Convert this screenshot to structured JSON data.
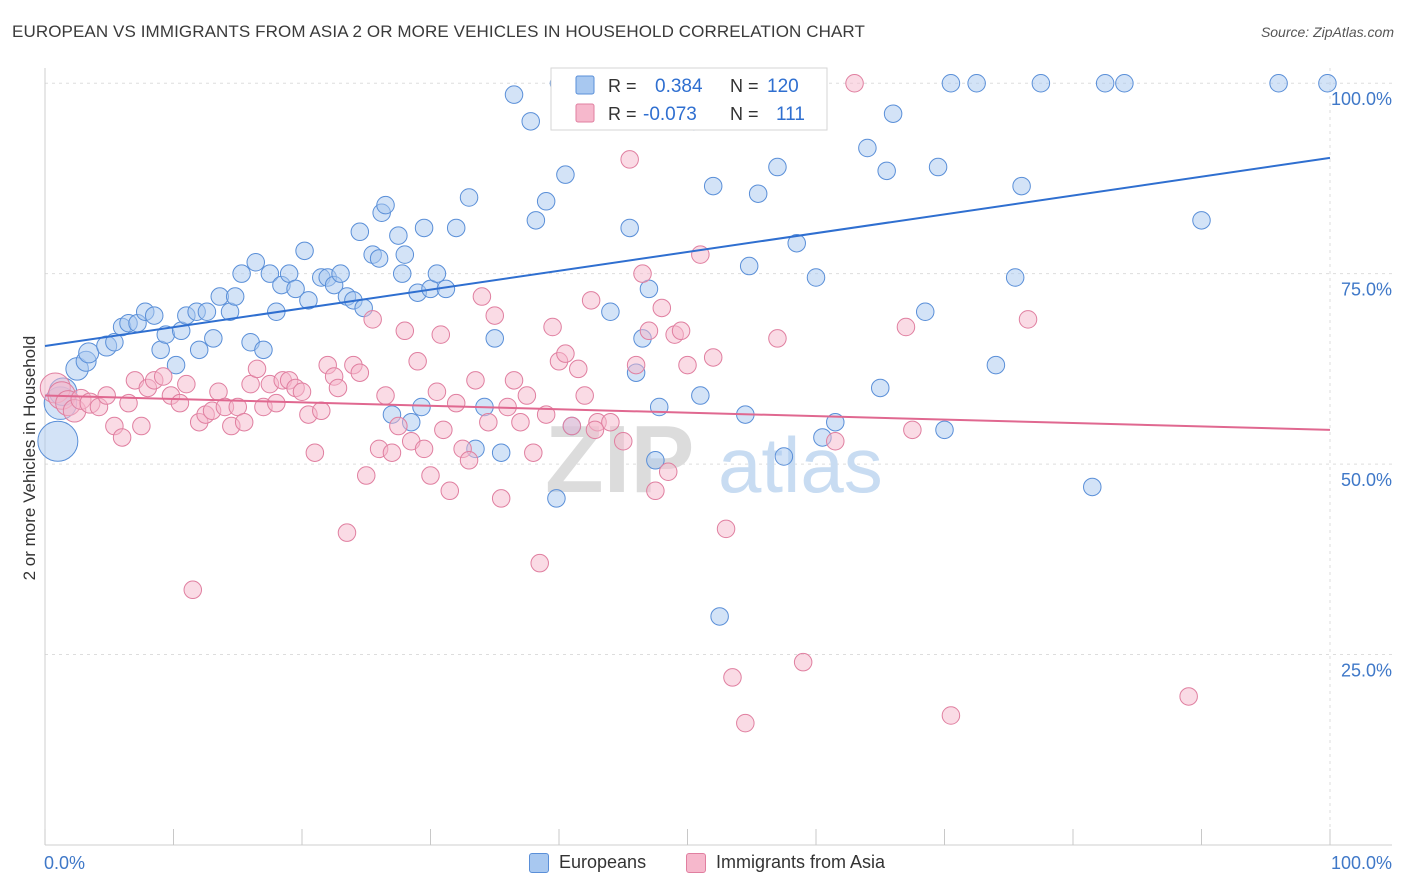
{
  "title": "EUROPEAN VS IMMIGRANTS FROM ASIA 2 OR MORE VEHICLES IN HOUSEHOLD CORRELATION CHART",
  "source": "Source: ZipAtlas.com",
  "watermark": {
    "zip": "ZIP",
    "atlas": "atlas"
  },
  "legend_stats": [
    {
      "r_label": "R =",
      "r_value": "0.384",
      "n_label": "N =",
      "n_value": "120"
    },
    {
      "r_label": "R =",
      "r_value": "-0.073",
      "n_label": "N =",
      "n_value": "111"
    }
  ],
  "colors": {
    "europeans_fill": "#a8c8f0",
    "europeans_stroke": "#5a8fd8",
    "europeans_line": "#2f6fd0",
    "asia_fill": "#f6b8cc",
    "asia_stroke": "#e07fa0",
    "asia_line": "#e06890",
    "tick_text": "#3f78c8",
    "grid": "#dddddd"
  },
  "chart_data": {
    "type": "scatter",
    "title": "EUROPEAN VS IMMIGRANTS FROM ASIA 2 OR MORE VEHICLES IN HOUSEHOLD CORRELATION CHART",
    "xlabel": "",
    "ylabel": "2 or more Vehicles in Household",
    "xlim": [
      0,
      100
    ],
    "ylim": [
      0,
      102
    ],
    "x_tick_labels": [
      "0.0%",
      "100.0%"
    ],
    "y_ticks": [
      25,
      50,
      75,
      100
    ],
    "y_tick_labels": [
      "25.0%",
      "50.0%",
      "75.0%",
      "100.0%"
    ],
    "grid": true,
    "legend_position": "bottom",
    "series": [
      {
        "name": "Europeans",
        "r": 0.384,
        "n": 120,
        "trend": [
          [
            0,
            65.5
          ],
          [
            100,
            90.2
          ]
        ],
        "points": [
          [
            1,
            53,
            16
          ],
          [
            1.2,
            58,
            13
          ],
          [
            1.4,
            59.5,
            11
          ],
          [
            2.5,
            62.5,
            9
          ],
          [
            3.2,
            63.5,
            8
          ],
          [
            3.4,
            64.6,
            8
          ],
          [
            4.8,
            65.5,
            8
          ],
          [
            5.4,
            66,
            7
          ],
          [
            6,
            68,
            7
          ],
          [
            6.5,
            68.5,
            7
          ],
          [
            7.2,
            68.5,
            7
          ],
          [
            7.8,
            70,
            7
          ],
          [
            8.5,
            69.5,
            7
          ],
          [
            9,
            65,
            7
          ],
          [
            9.4,
            67,
            7
          ],
          [
            10.2,
            63,
            7
          ],
          [
            10.6,
            67.5,
            7
          ],
          [
            11,
            69.5,
            7
          ],
          [
            11.8,
            70,
            7
          ],
          [
            12,
            65,
            7
          ],
          [
            12.6,
            70,
            7
          ],
          [
            13.1,
            66.5,
            7
          ],
          [
            13.6,
            72,
            7
          ],
          [
            14.4,
            70,
            7
          ],
          [
            14.8,
            72,
            7
          ],
          [
            15.3,
            75,
            7
          ],
          [
            16,
            66,
            7
          ],
          [
            16.4,
            76.5,
            7
          ],
          [
            17,
            65,
            7
          ],
          [
            17.5,
            75,
            7
          ],
          [
            18,
            70,
            7
          ],
          [
            18.4,
            73.5,
            7
          ],
          [
            19,
            75,
            7
          ],
          [
            19.5,
            73,
            7
          ],
          [
            20.2,
            78,
            7
          ],
          [
            20.5,
            71.5,
            7
          ],
          [
            21.5,
            74.5,
            7
          ],
          [
            22,
            74.5,
            7
          ],
          [
            22.5,
            73.5,
            7
          ],
          [
            23,
            75,
            7
          ],
          [
            23.5,
            72,
            7
          ],
          [
            24,
            71.5,
            7
          ],
          [
            24.5,
            80.5,
            7
          ],
          [
            24.8,
            70.5,
            7
          ],
          [
            25.5,
            77.5,
            7
          ],
          [
            26,
            77,
            7
          ],
          [
            26.2,
            83,
            7
          ],
          [
            26.5,
            84,
            7
          ],
          [
            27,
            56.5,
            7
          ],
          [
            27.5,
            80,
            7
          ],
          [
            27.8,
            75,
            7
          ],
          [
            28,
            77.5,
            7
          ],
          [
            28.5,
            55.5,
            7
          ],
          [
            29,
            72.5,
            7
          ],
          [
            29.3,
            57.5,
            7
          ],
          [
            29.5,
            81,
            7
          ],
          [
            30,
            73,
            7
          ],
          [
            30.5,
            75,
            7
          ],
          [
            31.2,
            73,
            7
          ],
          [
            32,
            81,
            7
          ],
          [
            33,
            85,
            7
          ],
          [
            33.5,
            52,
            7
          ],
          [
            34.2,
            57.5,
            7
          ],
          [
            35,
            66.5,
            7
          ],
          [
            35.5,
            51.5,
            7
          ],
          [
            36.5,
            98.5,
            7
          ],
          [
            37.8,
            95,
            7
          ],
          [
            38.2,
            82,
            7
          ],
          [
            39,
            84.5,
            7
          ],
          [
            39.8,
            45.5,
            7
          ],
          [
            40,
            100,
            7
          ],
          [
            40.5,
            88,
            7
          ],
          [
            41,
            55,
            7
          ],
          [
            42.5,
            100,
            7
          ],
          [
            43.5,
            100,
            7
          ],
          [
            44,
            70,
            7
          ],
          [
            45,
            100,
            7
          ],
          [
            45.5,
            81,
            7
          ],
          [
            46,
            62,
            7
          ],
          [
            46.5,
            66.5,
            7
          ],
          [
            47,
            73,
            7
          ],
          [
            47.5,
            50.5,
            7
          ],
          [
            47.8,
            57.5,
            7
          ],
          [
            48.5,
            97,
            7
          ],
          [
            50,
            100,
            7
          ],
          [
            50.5,
            95,
            7
          ],
          [
            51,
            59,
            7
          ],
          [
            52,
            86.5,
            7
          ],
          [
            52.5,
            30,
            7
          ],
          [
            54,
            96,
            7
          ],
          [
            54.5,
            56.5,
            7
          ],
          [
            54.8,
            76,
            7
          ],
          [
            55.5,
            85.5,
            7
          ],
          [
            56.5,
            100,
            7
          ],
          [
            57,
            89,
            7
          ],
          [
            57.5,
            51,
            7
          ],
          [
            58.5,
            79,
            7
          ],
          [
            59,
            96.5,
            7
          ],
          [
            60,
            74.5,
            7
          ],
          [
            60.5,
            53.5,
            7
          ],
          [
            61.5,
            55.5,
            7
          ],
          [
            64,
            91.5,
            7
          ],
          [
            65,
            60,
            7
          ],
          [
            65.5,
            88.5,
            7
          ],
          [
            66,
            96,
            7
          ],
          [
            68.5,
            70,
            7
          ],
          [
            69.5,
            89,
            7
          ],
          [
            70,
            54.5,
            7
          ],
          [
            70.5,
            100,
            7
          ],
          [
            72.5,
            100,
            7
          ],
          [
            74,
            63,
            7
          ],
          [
            75.5,
            74.5,
            7
          ],
          [
            76,
            86.5,
            7
          ],
          [
            77.5,
            100,
            7
          ],
          [
            81.5,
            47,
            7
          ],
          [
            82.5,
            100,
            7
          ],
          [
            84,
            100,
            7
          ],
          [
            90,
            82,
            7
          ],
          [
            96,
            100,
            7
          ],
          [
            99.8,
            100,
            7
          ]
        ]
      },
      {
        "name": "Immigrants from Asia",
        "r": -0.073,
        "n": 111,
        "trend": [
          [
            0,
            59
          ],
          [
            100,
            54.5
          ]
        ],
        "points": [
          [
            0.8,
            60,
            12
          ],
          [
            1.3,
            59,
            11
          ],
          [
            1.8,
            58,
            10
          ],
          [
            2.3,
            57,
            9
          ],
          [
            2.8,
            58.5,
            8
          ],
          [
            3.5,
            58,
            8
          ],
          [
            4.2,
            57.5,
            7
          ],
          [
            4.8,
            59,
            7
          ],
          [
            5.4,
            55,
            7
          ],
          [
            6,
            53.5,
            7
          ],
          [
            6.5,
            58,
            7
          ],
          [
            7,
            61,
            7
          ],
          [
            7.5,
            55,
            7
          ],
          [
            8,
            60,
            7
          ],
          [
            8.5,
            61,
            7
          ],
          [
            9.2,
            61.5,
            7
          ],
          [
            9.8,
            59,
            7
          ],
          [
            10.5,
            58,
            7
          ],
          [
            11,
            60.5,
            7
          ],
          [
            11.5,
            33.5,
            7
          ],
          [
            12,
            55.5,
            7
          ],
          [
            12.5,
            56.5,
            7
          ],
          [
            13,
            57,
            7
          ],
          [
            13.5,
            59.5,
            7
          ],
          [
            14,
            57.5,
            7
          ],
          [
            14.5,
            55,
            7
          ],
          [
            15,
            57.5,
            7
          ],
          [
            15.5,
            55.5,
            7
          ],
          [
            16,
            60.5,
            7
          ],
          [
            16.5,
            62.5,
            7
          ],
          [
            17,
            57.5,
            7
          ],
          [
            17.5,
            60.5,
            7
          ],
          [
            18,
            58,
            7
          ],
          [
            18.5,
            61,
            7
          ],
          [
            19,
            61,
            7
          ],
          [
            19.5,
            60,
            7
          ],
          [
            20,
            59.5,
            7
          ],
          [
            20.5,
            56.5,
            7
          ],
          [
            21,
            51.5,
            7
          ],
          [
            21.5,
            57,
            7
          ],
          [
            22,
            63,
            7
          ],
          [
            22.5,
            61.5,
            7
          ],
          [
            22.8,
            60,
            7
          ],
          [
            23.5,
            41,
            7
          ],
          [
            24,
            63,
            7
          ],
          [
            24.5,
            62,
            7
          ],
          [
            25,
            48.5,
            7
          ],
          [
            25.5,
            69,
            7
          ],
          [
            26,
            52,
            7
          ],
          [
            26.5,
            59,
            7
          ],
          [
            27,
            51.5,
            7
          ],
          [
            27.5,
            55,
            7
          ],
          [
            28,
            67.5,
            7
          ],
          [
            28.5,
            53,
            7
          ],
          [
            29,
            63.5,
            7
          ],
          [
            29.5,
            52,
            7
          ],
          [
            30,
            48.5,
            7
          ],
          [
            30.5,
            59.5,
            7
          ],
          [
            31,
            54.5,
            7
          ],
          [
            31.5,
            46.5,
            7
          ],
          [
            32,
            58,
            7
          ],
          [
            32.5,
            52,
            7
          ],
          [
            33,
            50.5,
            7
          ],
          [
            33.5,
            61,
            7
          ],
          [
            34,
            72,
            7
          ],
          [
            34.5,
            55.5,
            7
          ],
          [
            35,
            69.5,
            7
          ],
          [
            35.5,
            45.5,
            7
          ],
          [
            36,
            57.5,
            7
          ],
          [
            36.5,
            61,
            7
          ],
          [
            37,
            55.5,
            7
          ],
          [
            37.5,
            59,
            7
          ],
          [
            38,
            51.5,
            7
          ],
          [
            38.5,
            37,
            7
          ],
          [
            39,
            56.5,
            7
          ],
          [
            39.5,
            68,
            7
          ],
          [
            40,
            63.5,
            7
          ],
          [
            40.5,
            64.5,
            7
          ],
          [
            41,
            55,
            7
          ],
          [
            41.5,
            62.5,
            7
          ],
          [
            42,
            59,
            7
          ],
          [
            42.5,
            71.5,
            7
          ],
          [
            43,
            55.5,
            7
          ],
          [
            44,
            55.5,
            7
          ],
          [
            45,
            53,
            7
          ],
          [
            45.5,
            90,
            7
          ],
          [
            46,
            63,
            7
          ],
          [
            46.5,
            75,
            7
          ],
          [
            47,
            67.5,
            7
          ],
          [
            47.5,
            46.5,
            7
          ],
          [
            48,
            70.5,
            7
          ],
          [
            48.5,
            49,
            7
          ],
          [
            49,
            67,
            7
          ],
          [
            49.5,
            67.5,
            7
          ],
          [
            50,
            63,
            7
          ],
          [
            51,
            77.5,
            7
          ],
          [
            52,
            64,
            7
          ],
          [
            53,
            41.5,
            7
          ],
          [
            53.5,
            22,
            7
          ],
          [
            54.5,
            16,
            7
          ],
          [
            57,
            66.5,
            7
          ],
          [
            59,
            24,
            7
          ],
          [
            61.5,
            53,
            7
          ],
          [
            63,
            100,
            7
          ],
          [
            67,
            68,
            7
          ],
          [
            67.5,
            54.5,
            7
          ],
          [
            70.5,
            17,
            7
          ],
          [
            76.5,
            69,
            7
          ],
          [
            89,
            19.5,
            7
          ],
          [
            30.8,
            67,
            7
          ],
          [
            42.8,
            54.5,
            7
          ]
        ]
      }
    ]
  },
  "legend_bottom": [
    {
      "label": "Europeans"
    },
    {
      "label": "Immigrants from Asia"
    }
  ]
}
